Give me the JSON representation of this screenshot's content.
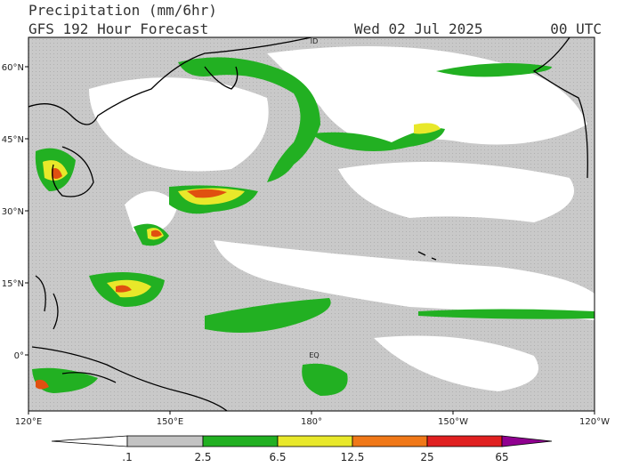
{
  "header": {
    "title": "Precipitation (mm/6hr)",
    "subtitle": "GFS 192 Hour Forecast",
    "date": "Wed 02 Jul 2025",
    "time": "00 UTC"
  },
  "map": {
    "lat_labels": [
      "60°N",
      "45°N",
      "30°N",
      "15°N",
      "0°"
    ],
    "lon_labels": [
      "120°E",
      "150°E",
      "180°",
      "150°W",
      "120°W"
    ],
    "annotations": [
      "ID",
      "EQ"
    ]
  },
  "colorbar": {
    "labels": [
      ".1",
      "2.5",
      "6.5",
      "12.5",
      "25",
      "65"
    ]
  }
}
